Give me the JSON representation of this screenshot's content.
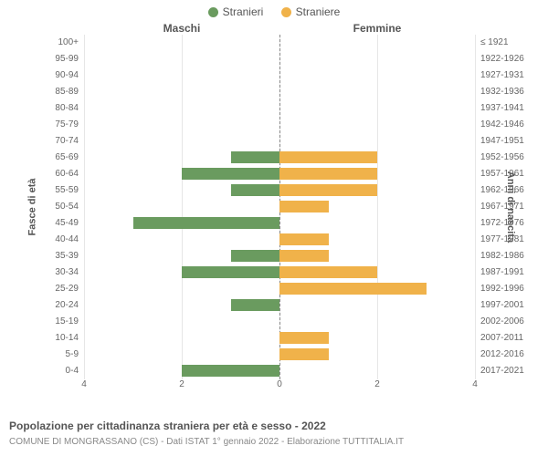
{
  "legend": {
    "male": {
      "label": "Stranieri",
      "color": "#6a9b5f"
    },
    "female": {
      "label": "Straniere",
      "color": "#f0b24a"
    }
  },
  "titles": {
    "left_col": "Maschi",
    "right_col": "Femmine",
    "y_left": "Fasce di età",
    "y_right": "Anni di nascita"
  },
  "chart": {
    "type": "population-pyramid",
    "x_max": 4,
    "x_ticks": [
      4,
      2,
      0,
      2,
      4
    ],
    "grid_positions_pct": [
      0,
      25,
      50,
      75,
      100
    ],
    "grid_color": "#e6e6e6",
    "zero_color": "#888888",
    "bar_colors": {
      "male": "#6a9b5f",
      "female": "#f0b24a"
    },
    "rows": [
      {
        "age": "100+",
        "birth": "≤ 1921",
        "m": 0,
        "f": 0
      },
      {
        "age": "95-99",
        "birth": "1922-1926",
        "m": 0,
        "f": 0
      },
      {
        "age": "90-94",
        "birth": "1927-1931",
        "m": 0,
        "f": 0
      },
      {
        "age": "85-89",
        "birth": "1932-1936",
        "m": 0,
        "f": 0
      },
      {
        "age": "80-84",
        "birth": "1937-1941",
        "m": 0,
        "f": 0
      },
      {
        "age": "75-79",
        "birth": "1942-1946",
        "m": 0,
        "f": 0
      },
      {
        "age": "70-74",
        "birth": "1947-1951",
        "m": 0,
        "f": 0
      },
      {
        "age": "65-69",
        "birth": "1952-1956",
        "m": 1,
        "f": 2
      },
      {
        "age": "60-64",
        "birth": "1957-1961",
        "m": 2,
        "f": 2
      },
      {
        "age": "55-59",
        "birth": "1962-1966",
        "m": 1,
        "f": 2
      },
      {
        "age": "50-54",
        "birth": "1967-1971",
        "m": 0,
        "f": 1
      },
      {
        "age": "45-49",
        "birth": "1972-1976",
        "m": 3,
        "f": 0
      },
      {
        "age": "40-44",
        "birth": "1977-1981",
        "m": 0,
        "f": 1
      },
      {
        "age": "35-39",
        "birth": "1982-1986",
        "m": 1,
        "f": 1
      },
      {
        "age": "30-34",
        "birth": "1987-1991",
        "m": 2,
        "f": 2
      },
      {
        "age": "25-29",
        "birth": "1992-1996",
        "m": 0,
        "f": 3
      },
      {
        "age": "20-24",
        "birth": "1997-2001",
        "m": 1,
        "f": 0
      },
      {
        "age": "15-19",
        "birth": "2002-2006",
        "m": 0,
        "f": 0
      },
      {
        "age": "10-14",
        "birth": "2007-2011",
        "m": 0,
        "f": 1
      },
      {
        "age": "5-9",
        "birth": "2012-2016",
        "m": 0,
        "f": 1
      },
      {
        "age": "0-4",
        "birth": "2017-2021",
        "m": 2,
        "f": 0
      }
    ]
  },
  "footer": {
    "title": "Popolazione per cittadinanza straniera per età e sesso - 2022",
    "sub": "COMUNE DI MONGRASSANO (CS) - Dati ISTAT 1° gennaio 2022 - Elaborazione TUTTITALIA.IT"
  }
}
